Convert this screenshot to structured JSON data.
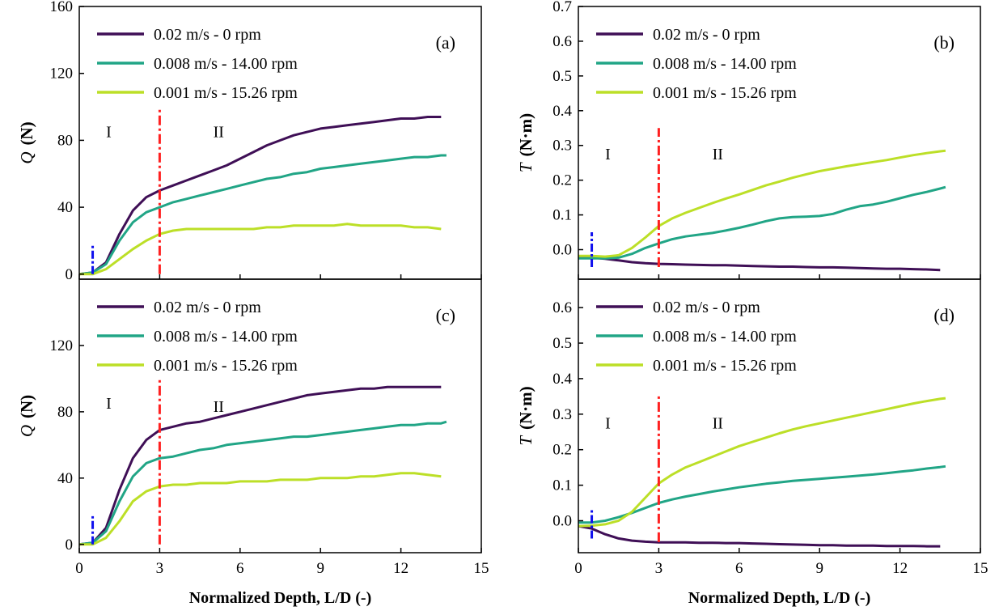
{
  "chart_data": [
    {
      "id": "a",
      "tag": "(a)",
      "type": "line",
      "ylabel_sym": "Q",
      "ylabel_unit": "(N)",
      "xlabel": "",
      "xlim": [
        0,
        15
      ],
      "ylim": [
        -3,
        160
      ],
      "yticks": [
        0,
        40,
        80,
        120,
        160
      ],
      "ytick_labels": [
        "0",
        "40",
        "80",
        "120",
        "160"
      ],
      "xticks": [
        0,
        3,
        6,
        9,
        12,
        15
      ],
      "xtick_labels": [],
      "regions": {
        "I": "I",
        "II": "II"
      },
      "region_pos": {
        "I": [
          1.1,
          82
        ],
        "II": [
          5.2,
          82
        ]
      },
      "tag_pos": [
        13.5,
        138
      ],
      "legend_pos": [
        0.55,
        150,
        9,
        160
      ],
      "red_line": {
        "x": 3,
        "y": [
          0,
          100
        ]
      },
      "blue_line": {
        "x": 0.5,
        "y": [
          0,
          17
        ]
      },
      "series": [
        {
          "name": "0.02 m/s - 0 rpm",
          "color": "#3f0f56",
          "x": [
            0,
            0.5,
            1.0,
            1.5,
            2.0,
            2.5,
            3.0,
            3.5,
            4.0,
            4.5,
            5.0,
            5.5,
            6.0,
            6.5,
            7.0,
            7.5,
            8.0,
            8.5,
            9.0,
            9.5,
            10.0,
            10.5,
            11.0,
            11.5,
            12.0,
            12.5,
            13.0,
            13.5
          ],
          "y": [
            0,
            1,
            7,
            24,
            38,
            46,
            50,
            53,
            56,
            59,
            62,
            65,
            69,
            73,
            77,
            80,
            83,
            85,
            87,
            88,
            89,
            90,
            91,
            92,
            93,
            93,
            94,
            94
          ]
        },
        {
          "name": "0.008 m/s - 14.00 rpm",
          "color": "#21a586",
          "x": [
            0,
            0.5,
            1.0,
            1.5,
            2.0,
            2.5,
            3.0,
            3.5,
            4.0,
            4.5,
            5.0,
            5.5,
            6.0,
            6.5,
            7.0,
            7.5,
            8.0,
            8.5,
            9.0,
            9.5,
            10.0,
            10.5,
            11.0,
            11.5,
            12.0,
            12.5,
            13.0,
            13.5,
            13.7
          ],
          "y": [
            0,
            1,
            6,
            20,
            31,
            37,
            40,
            43,
            45,
            47,
            49,
            51,
            53,
            55,
            57,
            58,
            60,
            61,
            63,
            64,
            65,
            66,
            67,
            68,
            69,
            70,
            70,
            71,
            71
          ]
        },
        {
          "name": "0.001 m/s - 15.26 rpm",
          "color": "#bcdf27",
          "x": [
            0,
            0.5,
            1.0,
            1.5,
            2.0,
            2.5,
            3.0,
            3.5,
            4.0,
            4.5,
            5.0,
            5.5,
            6.0,
            6.5,
            7.0,
            7.5,
            8.0,
            8.5,
            9.0,
            9.5,
            10.0,
            10.5,
            11.0,
            11.5,
            12.0,
            12.5,
            13.0,
            13.5
          ],
          "y": [
            0,
            0,
            3,
            9,
            15,
            20,
            24,
            26,
            27,
            27,
            27,
            27,
            27,
            27,
            28,
            28,
            29,
            29,
            29,
            29,
            30,
            29,
            29,
            29,
            29,
            28,
            28,
            27
          ]
        }
      ]
    },
    {
      "id": "b",
      "tag": "(b)",
      "type": "line",
      "ylabel_sym": "T",
      "ylabel_unit": "(N·m)",
      "xlabel": "",
      "xlim": [
        0,
        15
      ],
      "ylim": [
        -0.085,
        0.7
      ],
      "yticks": [
        0.0,
        0.1,
        0.2,
        0.3,
        0.4,
        0.5,
        0.6,
        0.7
      ],
      "ytick_labels": [
        "0.0",
        "0.1",
        "0.2",
        "0.3",
        "0.4",
        "0.5",
        "0.6",
        "0.7"
      ],
      "xticks": [
        0,
        3,
        6,
        9,
        12,
        15
      ],
      "xtick_labels": [],
      "regions": {
        "I": "I",
        "II": "II"
      },
      "region_pos": {
        "I": [
          1.1,
          0.26
        ],
        "II": [
          5.2,
          0.26
        ]
      },
      "tag_pos": [
        13.5,
        0.6
      ],
      "legend_pos": [
        0.55,
        0.655,
        9,
        0.7
      ],
      "red_line": {
        "x": 3,
        "y": [
          -0.05,
          0.35
        ]
      },
      "blue_line": {
        "x": 0.5,
        "y": [
          -0.05,
          0.05
        ]
      },
      "series": [
        {
          "name": "0.02 m/s - 0 rpm",
          "color": "#3f0f56",
          "x": [
            0,
            0.5,
            1.0,
            1.5,
            2.0,
            2.5,
            3.0,
            3.5,
            4.0,
            4.5,
            5.0,
            5.5,
            6.0,
            6.5,
            7.0,
            7.5,
            8.0,
            8.5,
            9.0,
            9.5,
            10.0,
            10.5,
            11.0,
            11.5,
            12.0,
            12.5,
            13.0,
            13.5
          ],
          "y": [
            -0.022,
            -0.023,
            -0.026,
            -0.031,
            -0.036,
            -0.039,
            -0.041,
            -0.042,
            -0.043,
            -0.044,
            -0.045,
            -0.045,
            -0.046,
            -0.047,
            -0.048,
            -0.049,
            -0.049,
            -0.05,
            -0.051,
            -0.051,
            -0.052,
            -0.053,
            -0.054,
            -0.055,
            -0.055,
            -0.056,
            -0.057,
            -0.059
          ]
        },
        {
          "name": "0.008 m/s - 14.00 rpm",
          "color": "#21a586",
          "x": [
            0,
            0.5,
            1.0,
            1.5,
            2.0,
            2.5,
            3.0,
            3.5,
            4.0,
            4.5,
            5.0,
            5.5,
            6.0,
            6.5,
            7.0,
            7.5,
            8.0,
            8.5,
            9.0,
            9.5,
            10.0,
            10.5,
            11.0,
            11.5,
            12.0,
            12.5,
            13.0,
            13.5,
            13.7
          ],
          "y": [
            -0.025,
            -0.025,
            -0.025,
            -0.023,
            -0.012,
            0.005,
            0.018,
            0.03,
            0.038,
            0.043,
            0.048,
            0.055,
            0.063,
            0.072,
            0.082,
            0.09,
            0.094,
            0.095,
            0.097,
            0.103,
            0.115,
            0.125,
            0.13,
            0.138,
            0.148,
            0.158,
            0.166,
            0.176,
            0.18
          ]
        },
        {
          "name": "0.001 m/s - 15.26 rpm",
          "color": "#bcdf27",
          "x": [
            0,
            0.5,
            1.0,
            1.5,
            2.0,
            2.5,
            3.0,
            3.5,
            4.0,
            4.5,
            5.0,
            5.5,
            6.0,
            6.5,
            7.0,
            7.5,
            8.0,
            8.5,
            9.0,
            9.5,
            10.0,
            10.5,
            11.0,
            11.5,
            12.0,
            12.5,
            13.0,
            13.5,
            13.7
          ],
          "y": [
            -0.018,
            -0.018,
            -0.02,
            -0.016,
            0.005,
            0.035,
            0.068,
            0.09,
            0.106,
            0.12,
            0.134,
            0.147,
            0.159,
            0.172,
            0.185,
            0.196,
            0.207,
            0.217,
            0.226,
            0.233,
            0.24,
            0.246,
            0.252,
            0.258,
            0.265,
            0.272,
            0.278,
            0.283,
            0.285
          ]
        }
      ]
    },
    {
      "id": "c",
      "tag": "(c)",
      "type": "line",
      "ylabel_sym": "Q",
      "ylabel_unit": "(N)",
      "xlabel": "Normalized Depth, L/D  (-)",
      "xlim": [
        0,
        15
      ],
      "ylim": [
        -5,
        160
      ],
      "yticks": [
        0,
        40,
        80,
        120
      ],
      "ytick_labels": [
        "0",
        "40",
        "80",
        "120"
      ],
      "xticks": [
        0,
        3,
        6,
        9,
        12,
        15
      ],
      "xtick_labels": [
        "0",
        "3",
        "6",
        "9",
        "12",
        "15"
      ],
      "regions": {
        "I": "I",
        "II": "II"
      },
      "region_pos": {
        "I": [
          1.1,
          82
        ],
        "II": [
          5.2,
          80
        ]
      },
      "tag_pos": [
        13.5,
        138
      ],
      "legend_pos": [
        0.55,
        150,
        9,
        160
      ],
      "red_line": {
        "x": 3,
        "y": [
          0,
          100
        ]
      },
      "blue_line": {
        "x": 0.5,
        "y": [
          0,
          17
        ]
      },
      "series": [
        {
          "name": "0.02 m/s - 0 rpm",
          "color": "#3f0f56",
          "x": [
            0,
            0.5,
            1.0,
            1.5,
            2.0,
            2.5,
            3.0,
            3.5,
            4.0,
            4.5,
            5.0,
            5.5,
            6.0,
            6.5,
            7.0,
            7.5,
            8.0,
            8.5,
            9.0,
            9.5,
            10.0,
            10.5,
            11.0,
            11.5,
            12.0,
            12.5,
            13.0,
            13.5
          ],
          "y": [
            0,
            1,
            10,
            33,
            52,
            63,
            69,
            71,
            73,
            74,
            76,
            78,
            80,
            82,
            84,
            86,
            88,
            90,
            91,
            92,
            93,
            94,
            94,
            95,
            95,
            95,
            95,
            95
          ]
        },
        {
          "name": "0.008 m/s - 14.00 rpm",
          "color": "#21a586",
          "x": [
            0,
            0.5,
            1.0,
            1.5,
            2.0,
            2.5,
            3.0,
            3.5,
            4.0,
            4.5,
            5.0,
            5.5,
            6.0,
            6.5,
            7.0,
            7.5,
            8.0,
            8.5,
            9.0,
            9.5,
            10.0,
            10.5,
            11.0,
            11.5,
            12.0,
            12.5,
            13.0,
            13.5,
            13.7
          ],
          "y": [
            0,
            1,
            8,
            26,
            41,
            49,
            52,
            53,
            55,
            57,
            58,
            60,
            61,
            62,
            63,
            64,
            65,
            65,
            66,
            67,
            68,
            69,
            70,
            71,
            72,
            72,
            73,
            73,
            74
          ]
        },
        {
          "name": "0.001 m/s - 15.26 rpm",
          "color": "#bcdf27",
          "x": [
            0,
            0.5,
            1.0,
            1.5,
            2.0,
            2.5,
            3.0,
            3.5,
            4.0,
            4.5,
            5.0,
            5.5,
            6.0,
            6.5,
            7.0,
            7.5,
            8.0,
            8.5,
            9.0,
            9.5,
            10.0,
            10.5,
            11.0,
            11.5,
            12.0,
            12.5,
            13.0,
            13.5
          ],
          "y": [
            0,
            0,
            4,
            14,
            26,
            32,
            35,
            36,
            36,
            37,
            37,
            37,
            38,
            38,
            38,
            39,
            39,
            39,
            40,
            40,
            40,
            41,
            41,
            42,
            43,
            43,
            42,
            41
          ]
        }
      ]
    },
    {
      "id": "d",
      "tag": "(d)",
      "type": "line",
      "ylabel_sym": "T",
      "ylabel_unit": "(N·m)",
      "xlabel": "Normalized Depth, L/D  (-)",
      "xlim": [
        0,
        15
      ],
      "ylim": [
        -0.09,
        0.68
      ],
      "yticks": [
        0.0,
        0.1,
        0.2,
        0.3,
        0.4,
        0.5,
        0.6
      ],
      "ytick_labels": [
        "0.0",
        "0.1",
        "0.2",
        "0.3",
        "0.4",
        "0.5",
        "0.6"
      ],
      "xticks": [
        0,
        3,
        6,
        9,
        12,
        15
      ],
      "xtick_labels": [
        "0",
        "3",
        "6",
        "9",
        "12",
        "15"
      ],
      "regions": {
        "I": "I",
        "II": "II"
      },
      "region_pos": {
        "I": [
          1.1,
          0.26
        ],
        "II": [
          5.2,
          0.26
        ]
      },
      "tag_pos": [
        13.5,
        0.6
      ],
      "legend_pos": [
        0.55,
        0.655,
        9,
        0.68
      ],
      "red_line": {
        "x": 3,
        "y": [
          -0.06,
          0.35
        ]
      },
      "blue_line": {
        "x": 0.5,
        "y": [
          -0.05,
          0.03
        ]
      },
      "series": [
        {
          "name": "0.02 m/s - 0 rpm",
          "color": "#3f0f56",
          "x": [
            0,
            0.5,
            1.0,
            1.5,
            2.0,
            2.5,
            3.0,
            3.5,
            4.0,
            4.5,
            5.0,
            5.5,
            6.0,
            6.5,
            7.0,
            7.5,
            8.0,
            8.5,
            9.0,
            9.5,
            10.0,
            10.5,
            11.0,
            11.5,
            12.0,
            12.5,
            13.0,
            13.5
          ],
          "y": [
            -0.015,
            -0.022,
            -0.038,
            -0.05,
            -0.056,
            -0.059,
            -0.061,
            -0.061,
            -0.061,
            -0.062,
            -0.062,
            -0.063,
            -0.063,
            -0.064,
            -0.065,
            -0.066,
            -0.067,
            -0.068,
            -0.069,
            -0.069,
            -0.07,
            -0.07,
            -0.07,
            -0.071,
            -0.071,
            -0.071,
            -0.072,
            -0.072
          ]
        },
        {
          "name": "0.008 m/s - 14.00 rpm",
          "color": "#21a586",
          "x": [
            0,
            0.5,
            1.0,
            1.5,
            2.0,
            2.5,
            3.0,
            3.5,
            4.0,
            4.5,
            5.0,
            5.5,
            6.0,
            6.5,
            7.0,
            7.5,
            8.0,
            8.5,
            9.0,
            9.5,
            10.0,
            10.5,
            11.0,
            11.5,
            12.0,
            12.5,
            13.0,
            13.5,
            13.7
          ],
          "y": [
            -0.005,
            -0.005,
            0.0,
            0.01,
            0.022,
            0.036,
            0.05,
            0.06,
            0.068,
            0.075,
            0.082,
            0.088,
            0.094,
            0.099,
            0.104,
            0.108,
            0.112,
            0.115,
            0.118,
            0.121,
            0.124,
            0.127,
            0.13,
            0.134,
            0.138,
            0.142,
            0.147,
            0.151,
            0.153
          ]
        },
        {
          "name": "0.001 m/s - 15.26 rpm",
          "color": "#bcdf27",
          "x": [
            0,
            0.5,
            1.0,
            1.5,
            2.0,
            2.5,
            3.0,
            3.5,
            4.0,
            4.5,
            5.0,
            5.5,
            6.0,
            6.5,
            7.0,
            7.5,
            8.0,
            8.5,
            9.0,
            9.5,
            10.0,
            10.5,
            11.0,
            11.5,
            12.0,
            12.5,
            13.0,
            13.5,
            13.7
          ],
          "y": [
            -0.015,
            -0.014,
            -0.01,
            0.0,
            0.025,
            0.065,
            0.105,
            0.13,
            0.15,
            0.165,
            0.18,
            0.195,
            0.21,
            0.222,
            0.234,
            0.246,
            0.257,
            0.266,
            0.274,
            0.282,
            0.29,
            0.298,
            0.306,
            0.314,
            0.322,
            0.33,
            0.337,
            0.343,
            0.345
          ]
        }
      ]
    }
  ]
}
